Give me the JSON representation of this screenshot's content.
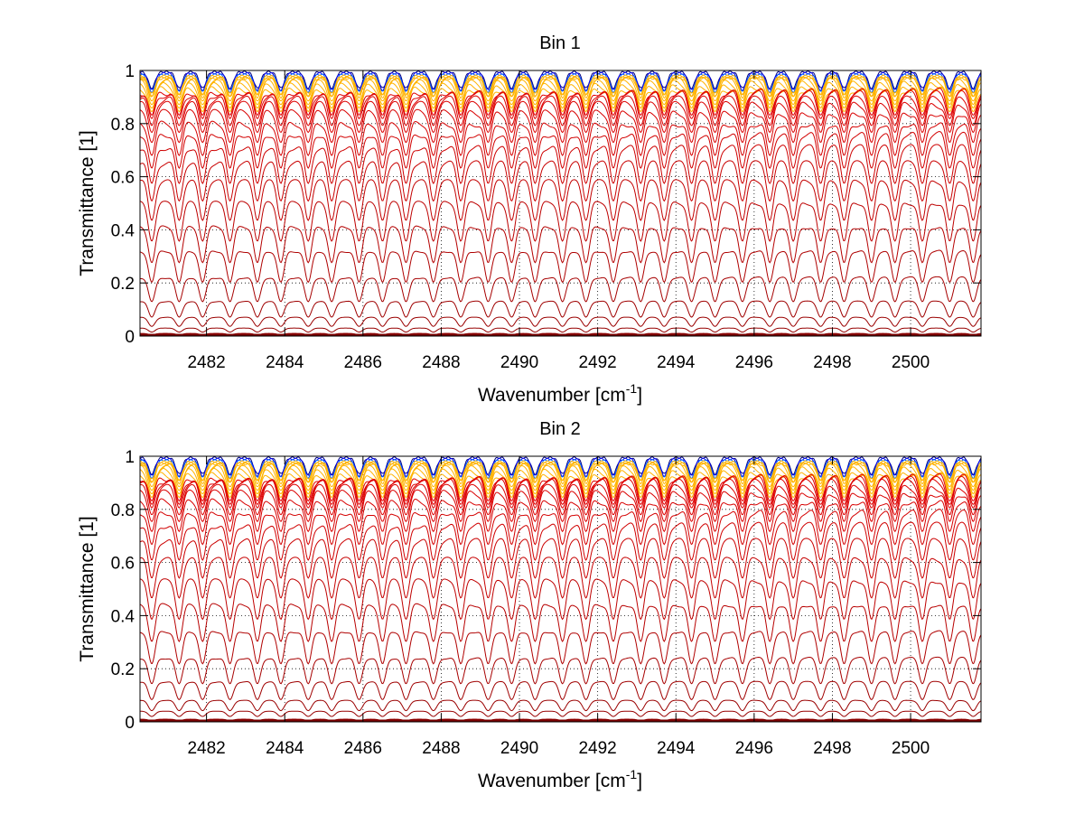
{
  "figure": {
    "background": "#ffffff",
    "series_colormap": "jet (blue for high transmittance curves through orange to dark red for strongly absorbing curves)"
  },
  "chart_data": [
    {
      "type": "line",
      "title": "Bin 1",
      "xlabel_main": "Wavenumber [cm",
      "xlabel_sup": "-1",
      "xlabel_tail": "]",
      "ylabel": "Transmittance [1]",
      "xlim": [
        2480.3,
        2501.8
      ],
      "ylim": [
        0,
        1
      ],
      "xticks": [
        2482,
        2484,
        2486,
        2488,
        2490,
        2492,
        2494,
        2496,
        2498,
        2500
      ],
      "xtick_labels": [
        "2482",
        "2484",
        "2486",
        "2488",
        "2490",
        "2492",
        "2494",
        "2496",
        "2498",
        "2500"
      ],
      "yticks": [
        0,
        0.2,
        0.4,
        0.6,
        0.8,
        1
      ],
      "ytick_labels": [
        "0",
        "0.2",
        "0.4",
        "0.6",
        "0.8",
        "1"
      ],
      "grid": true,
      "line_positions": [
        2480.6,
        2481.3,
        2481.9,
        2482.6,
        2483.3,
        2483.9,
        2484.6,
        2485.2,
        2485.9,
        2486.5,
        2487.1,
        2487.8,
        2488.5,
        2489.2,
        2489.8,
        2490.4,
        2491.1,
        2491.7,
        2492.4,
        2493.1,
        2493.7,
        2494.4,
        2495.0,
        2495.7,
        2496.4,
        2497.0,
        2497.7,
        2498.3,
        2499.0,
        2499.6,
        2500.3,
        2501.0,
        2501.6
      ],
      "curve_baselines": [
        0.995,
        0.99,
        0.985,
        0.98,
        0.975,
        0.97,
        0.96,
        0.95,
        0.94,
        0.93,
        0.92,
        0.91,
        0.89,
        0.87,
        0.84,
        0.8,
        0.76,
        0.71,
        0.65,
        0.58,
        0.5,
        0.41,
        0.32,
        0.22,
        0.13,
        0.07,
        0.03,
        0.01
      ]
    },
    {
      "type": "line",
      "title": "Bin 2",
      "xlabel_main": "Wavenumber [cm",
      "xlabel_sup": "-1",
      "xlabel_tail": "]",
      "ylabel": "Transmittance [1]",
      "xlim": [
        2480.3,
        2501.8
      ],
      "ylim": [
        0,
        1
      ],
      "xticks": [
        2482,
        2484,
        2486,
        2488,
        2490,
        2492,
        2494,
        2496,
        2498,
        2500
      ],
      "xtick_labels": [
        "2482",
        "2484",
        "2486",
        "2488",
        "2490",
        "2492",
        "2494",
        "2496",
        "2498",
        "2500"
      ],
      "yticks": [
        0,
        0.2,
        0.4,
        0.6,
        0.8,
        1
      ],
      "ytick_labels": [
        "0",
        "0.2",
        "0.4",
        "0.6",
        "0.8",
        "1"
      ],
      "grid": true,
      "line_positions": [
        2480.6,
        2481.3,
        2481.9,
        2482.6,
        2483.3,
        2483.9,
        2484.6,
        2485.2,
        2485.9,
        2486.5,
        2487.1,
        2487.8,
        2488.5,
        2489.2,
        2489.8,
        2490.4,
        2491.1,
        2491.7,
        2492.4,
        2493.1,
        2493.7,
        2494.4,
        2495.0,
        2495.7,
        2496.4,
        2497.0,
        2497.7,
        2498.3,
        2499.0,
        2499.6,
        2500.3,
        2501.0,
        2501.6
      ],
      "curve_baselines": [
        0.995,
        0.99,
        0.985,
        0.98,
        0.975,
        0.97,
        0.96,
        0.95,
        0.94,
        0.93,
        0.92,
        0.91,
        0.9,
        0.88,
        0.86,
        0.83,
        0.79,
        0.74,
        0.68,
        0.61,
        0.53,
        0.44,
        0.34,
        0.24,
        0.15,
        0.08,
        0.04,
        0.01
      ]
    }
  ]
}
